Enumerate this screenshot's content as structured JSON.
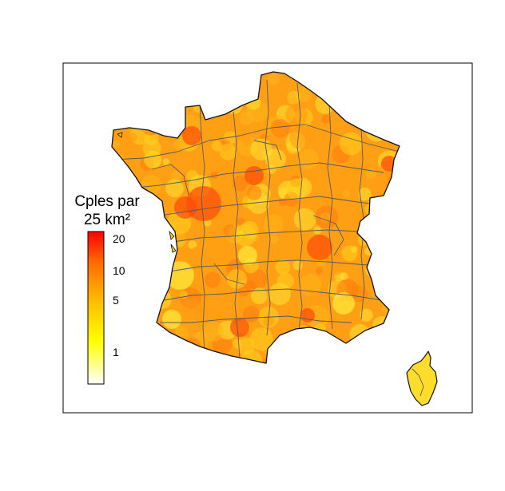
{
  "legend": {
    "title_line1": "Cples par",
    "title_line2": "25 km²",
    "ticks": [
      {
        "label": "20",
        "value": 20
      },
      {
        "label": "10",
        "value": 10
      },
      {
        "label": "5",
        "value": 5
      },
      {
        "label": "1",
        "value": 1
      }
    ],
    "colors": {
      "low": "#ffffff",
      "mid": "#ffff00",
      "high": "#ff0000"
    }
  },
  "map": {
    "fill_colors": [
      "#ffd21e",
      "#ffb417",
      "#ff9a12",
      "#ffe432",
      "#ff7a0c"
    ]
  }
}
